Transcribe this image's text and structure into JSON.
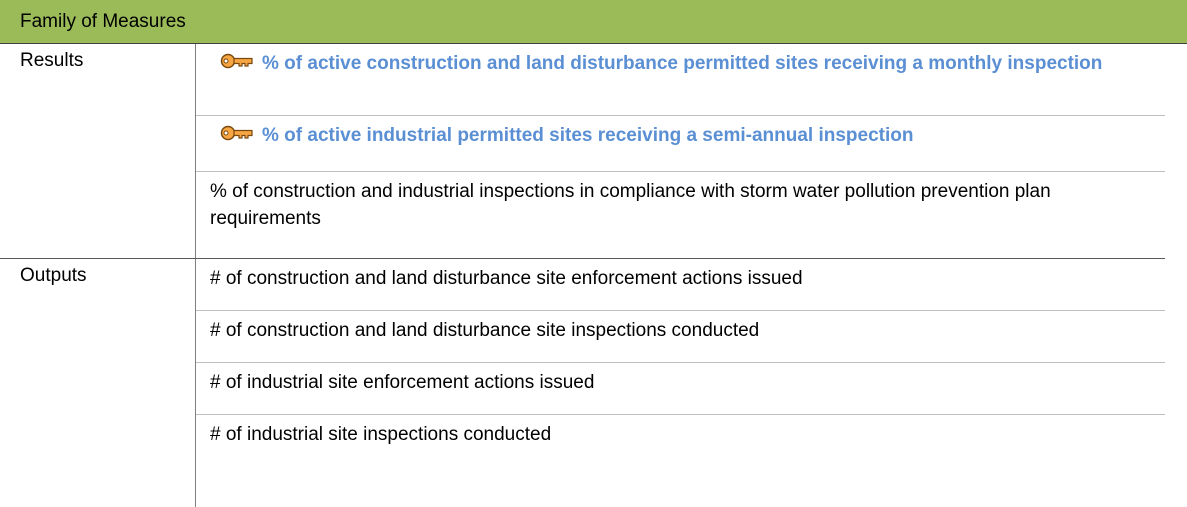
{
  "header": {
    "title": "Family of Measures"
  },
  "sections": [
    {
      "label": "Results",
      "items": [
        {
          "text": "% of active construction and land disturbance permitted sites receiving a monthly inspection",
          "key": true
        },
        {
          "text": "% of active industrial permitted sites receiving a semi-annual inspection",
          "key": true
        },
        {
          "text": "% of construction and industrial inspections in compliance with storm water pollution prevention plan requirements",
          "key": false
        }
      ]
    },
    {
      "label": "Outputs",
      "items": [
        {
          "text": "# of construction and land disturbance site enforcement actions issued",
          "key": false
        },
        {
          "text": "# of construction and land disturbance site inspections conducted",
          "key": false
        },
        {
          "text": "# of industrial site enforcement actions issued",
          "key": false
        },
        {
          "text": "# of industrial site inspections conducted",
          "key": false
        }
      ]
    }
  ]
}
